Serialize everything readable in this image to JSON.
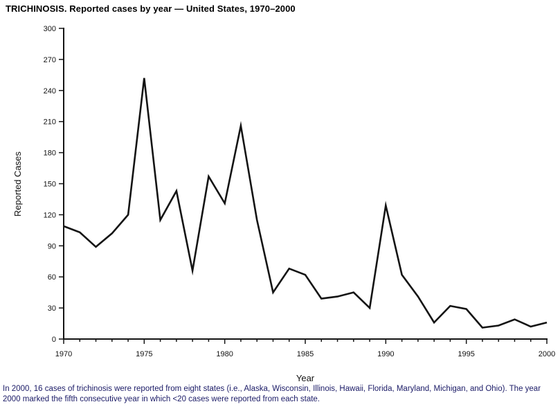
{
  "page": {
    "footnote": "In 2000, 16 cases of trichinosis were reported from eight states (i.e., Alaska, Wisconsin, Illinois, Hawaii, Florida, Maryland, Michigan, and Ohio). The year 2000 marked the fifth consecutive year in which <20 cases were reported from each state."
  },
  "colors": {
    "line": "#141414",
    "axis": "#141414",
    "tick_text": "#111111",
    "title_text": "#000000",
    "footnote_text": "#1a1a66"
  },
  "chart_data": {
    "type": "line",
    "title": "TRICHINOSIS. Reported cases by year — United States, 1970–2000",
    "xlabel": "Year",
    "ylabel": "Reported Cases",
    "x": [
      1970,
      1971,
      1972,
      1973,
      1974,
      1975,
      1976,
      1977,
      1978,
      1979,
      1980,
      1981,
      1982,
      1983,
      1984,
      1985,
      1986,
      1987,
      1988,
      1989,
      1990,
      1991,
      1992,
      1993,
      1994,
      1995,
      1996,
      1997,
      1998,
      1999,
      2000
    ],
    "values": [
      109,
      103,
      89,
      102,
      120,
      252,
      115,
      143,
      66,
      157,
      131,
      206,
      115,
      45,
      68,
      62,
      39,
      41,
      45,
      30,
      129,
      62,
      41,
      16,
      32,
      29,
      11,
      13,
      19,
      12,
      16
    ],
    "ylim": [
      0,
      300
    ],
    "ytick_interval": 30,
    "xticks_labeled": [
      1970,
      1975,
      1980,
      1985,
      1990,
      1995,
      2000
    ],
    "grid": false,
    "legend": "none"
  }
}
